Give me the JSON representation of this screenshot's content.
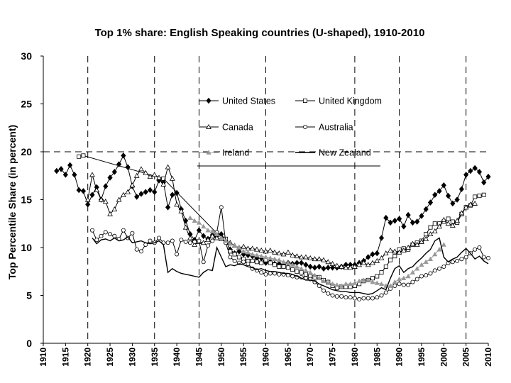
{
  "chart_data": {
    "type": "line",
    "title": "Top 1% share: English Speaking countries (U-shaped), 1910-2010",
    "xlabel": "",
    "ylabel": "Top Percentile Share (in percent)",
    "xlim": [
      1910,
      2010
    ],
    "ylim": [
      0,
      30
    ],
    "yticks": [
      0,
      5,
      10,
      15,
      20,
      25,
      30
    ],
    "xticks": [
      1910,
      1915,
      1920,
      1925,
      1930,
      1935,
      1940,
      1945,
      1950,
      1955,
      1960,
      1965,
      1970,
      1975,
      1980,
      1985,
      1990,
      1995,
      2000,
      2005,
      2010
    ],
    "reference_lines": {
      "horizontal": [
        20
      ],
      "vertical": [
        1920,
        1935,
        1945,
        1960,
        1980,
        1990,
        2005
      ]
    },
    "series": [
      {
        "name": "United States",
        "marker": "diamond-filled",
        "color": "#000000",
        "x": [
          1913,
          1914,
          1915,
          1916,
          1917,
          1918,
          1919,
          1920,
          1921,
          1922,
          1923,
          1924,
          1925,
          1926,
          1927,
          1928,
          1929,
          1930,
          1931,
          1932,
          1933,
          1934,
          1935,
          1936,
          1937,
          1938,
          1939,
          1940,
          1941,
          1942,
          1943,
          1944,
          1945,
          1946,
          1947,
          1948,
          1949,
          1950,
          1951,
          1952,
          1953,
          1954,
          1955,
          1956,
          1957,
          1958,
          1959,
          1960,
          1961,
          1962,
          1963,
          1964,
          1965,
          1966,
          1967,
          1968,
          1969,
          1970,
          1971,
          1972,
          1973,
          1974,
          1975,
          1976,
          1977,
          1978,
          1979,
          1980,
          1981,
          1982,
          1983,
          1984,
          1985,
          1986,
          1987,
          1988,
          1989,
          1990,
          1991,
          1992,
          1993,
          1994,
          1995,
          1996,
          1997,
          1998,
          1999,
          2000,
          2001,
          2002,
          2003,
          2004,
          2005,
          2006,
          2007,
          2008,
          2009,
          2010
        ],
        "y": [
          18.0,
          18.2,
          17.6,
          18.6,
          17.6,
          16.0,
          15.9,
          14.5,
          15.5,
          16.3,
          15.0,
          16.4,
          17.3,
          17.9,
          18.7,
          19.6,
          18.4,
          16.4,
          15.3,
          15.6,
          15.8,
          16.0,
          15.8,
          17.0,
          16.8,
          14.2,
          15.5,
          15.7,
          14.0,
          12.8,
          11.4,
          10.8,
          11.8,
          11.2,
          10.9,
          11.3,
          11.2,
          11.4,
          10.7,
          9.8,
          9.4,
          9.6,
          9.3,
          9.2,
          9.1,
          8.9,
          8.9,
          8.4,
          8.5,
          8.3,
          8.3,
          8.2,
          8.4,
          8.3,
          8.4,
          8.4,
          8.2,
          8.0,
          7.9,
          8.0,
          7.8,
          7.9,
          7.9,
          7.9,
          8.0,
          8.2,
          8.2,
          8.2,
          8.4,
          8.6,
          9.0,
          9.3,
          9.4,
          11.0,
          13.1,
          12.6,
          12.8,
          13.0,
          12.2,
          13.4,
          12.6,
          12.7,
          13.3,
          14.0,
          14.7,
          15.5,
          15.9,
          16.5,
          15.4,
          14.6,
          15.0,
          16.1,
          17.6,
          18.0,
          18.3,
          17.9,
          16.8,
          17.4
        ]
      },
      {
        "name": "United Kingdom",
        "marker": "square-open",
        "color": "#000000",
        "x": [
          1918,
          1919,
          1937,
          1949,
          1951,
          1952,
          1953,
          1954,
          1955,
          1956,
          1957,
          1958,
          1959,
          1960,
          1961,
          1962,
          1963,
          1964,
          1965,
          1966,
          1967,
          1968,
          1969,
          1970,
          1971,
          1972,
          1973,
          1974,
          1975,
          1976,
          1977,
          1978,
          1979,
          1980,
          1981,
          1982,
          1983,
          1984,
          1985,
          1986,
          1987,
          1988,
          1989,
          1990,
          1991,
          1992,
          1993,
          1994,
          1995,
          1996,
          1997,
          1998,
          1999,
          2000,
          2001,
          2002,
          2003,
          2004,
          2005,
          2006,
          2007,
          2008,
          2009
        ],
        "y": [
          19.5,
          19.6,
          17.2,
          11.5,
          10.9,
          9.6,
          9.3,
          9.0,
          8.8,
          8.6,
          8.6,
          8.5,
          8.4,
          8.7,
          8.4,
          8.2,
          8.0,
          8.0,
          7.9,
          7.7,
          7.5,
          7.4,
          7.2,
          7.0,
          6.9,
          6.9,
          6.6,
          6.4,
          6.0,
          5.8,
          5.9,
          5.9,
          5.9,
          6.0,
          6.2,
          6.5,
          6.6,
          6.8,
          7.0,
          7.4,
          8.0,
          8.7,
          9.1,
          9.8,
          9.9,
          9.8,
          10.3,
          10.5,
          10.7,
          11.4,
          12.1,
          12.5,
          12.5,
          12.7,
          13.0,
          12.7,
          12.6,
          13.5,
          14.2,
          14.4,
          15.3,
          15.4,
          15.5
        ]
      },
      {
        "name": "Canada",
        "marker": "triangle-open",
        "color": "#000000",
        "x": [
          1920,
          1921,
          1922,
          1923,
          1924,
          1925,
          1926,
          1927,
          1928,
          1929,
          1930,
          1931,
          1932,
          1933,
          1934,
          1935,
          1936,
          1937,
          1938,
          1939,
          1940,
          1941,
          1942,
          1943,
          1944,
          1945,
          1946,
          1947,
          1948,
          1949,
          1950,
          1951,
          1952,
          1953,
          1954,
          1955,
          1956,
          1957,
          1958,
          1959,
          1960,
          1961,
          1962,
          1963,
          1964,
          1965,
          1966,
          1967,
          1968,
          1969,
          1970,
          1971,
          1972,
          1973,
          1974,
          1975,
          1976,
          1977,
          1978,
          1979,
          1980,
          1981,
          1982,
          1983,
          1984,
          1985,
          1986,
          1987,
          1988,
          1989,
          1990,
          1991,
          1992,
          1993,
          1994,
          1995,
          1996,
          1997,
          1998,
          1999,
          2000,
          2001,
          2002,
          2003,
          2004,
          2005,
          2006,
          2007
        ],
        "y": [
          15.0,
          17.6,
          16.0,
          15.0,
          14.8,
          13.5,
          14.0,
          15.0,
          15.5,
          15.8,
          16.5,
          17.5,
          18.2,
          17.8,
          17.4,
          17.6,
          17.3,
          16.6,
          18.4,
          17.2,
          14.5,
          13.8,
          12.1,
          11.0,
          10.3,
          10.6,
          10.5,
          10.8,
          11.2,
          11.0,
          10.9,
          10.7,
          10.5,
          10.2,
          10.0,
          10.1,
          9.9,
          9.9,
          9.8,
          9.7,
          9.6,
          9.7,
          9.5,
          9.4,
          9.3,
          9.5,
          9.2,
          9.1,
          9.0,
          9.0,
          8.9,
          8.8,
          8.8,
          8.7,
          8.5,
          8.3,
          8.1,
          8.0,
          7.9,
          7.9,
          8.0,
          8.2,
          8.4,
          8.2,
          8.4,
          8.6,
          8.9,
          9.4,
          9.7,
          9.6,
          9.5,
          9.7,
          10.0,
          10.4,
          10.3,
          10.6,
          10.9,
          11.4,
          11.7,
          12.2,
          12.9,
          12.5,
          12.3,
          12.8,
          13.6,
          14.2,
          14.5,
          14.6
        ]
      },
      {
        "name": "Australia",
        "marker": "circle-open",
        "color": "#000000",
        "x": [
          1921,
          1922,
          1923,
          1924,
          1925,
          1926,
          1927,
          1928,
          1929,
          1930,
          1931,
          1932,
          1933,
          1934,
          1935,
          1936,
          1937,
          1938,
          1939,
          1940,
          1941,
          1942,
          1943,
          1944,
          1945,
          1946,
          1947,
          1948,
          1949,
          1950,
          1951,
          1952,
          1953,
          1954,
          1955,
          1956,
          1957,
          1958,
          1959,
          1960,
          1961,
          1962,
          1963,
          1964,
          1965,
          1966,
          1967,
          1968,
          1969,
          1970,
          1971,
          1972,
          1973,
          1974,
          1975,
          1976,
          1977,
          1978,
          1979,
          1980,
          1981,
          1982,
          1983,
          1984,
          1985,
          1986,
          1987,
          1988,
          1989,
          1990,
          1991,
          1992,
          1993,
          1994,
          1995,
          1996,
          1997,
          1998,
          1999,
          2000,
          2001,
          2002,
          2003,
          2004,
          2005,
          2006,
          2007,
          2008,
          2009,
          2010
        ],
        "y": [
          11.8,
          10.8,
          11.2,
          11.6,
          11.4,
          11.2,
          10.9,
          11.8,
          11.0,
          11.5,
          9.8,
          9.6,
          10.3,
          10.7,
          10.5,
          11.0,
          10.5,
          10.5,
          10.7,
          9.3,
          10.8,
          10.6,
          10.5,
          10.6,
          10.7,
          8.5,
          10.2,
          10.7,
          11.6,
          14.2,
          10.5,
          9.0,
          8.6,
          8.4,
          8.5,
          8.3,
          7.8,
          7.6,
          7.4,
          7.2,
          7.3,
          7.3,
          7.2,
          7.2,
          7.1,
          7.0,
          6.9,
          6.9,
          6.8,
          6.7,
          6.4,
          6.0,
          5.5,
          5.2,
          5.0,
          4.9,
          4.9,
          4.8,
          4.8,
          4.7,
          4.6,
          4.7,
          4.7,
          4.7,
          4.8,
          5.0,
          5.3,
          5.7,
          6.0,
          6.2,
          6.1,
          6.1,
          6.4,
          6.7,
          7.0,
          7.1,
          7.3,
          7.6,
          7.8,
          8.0,
          8.4,
          8.5,
          8.6,
          8.8,
          9.0,
          9.4,
          9.8,
          10.0,
          9.0,
          8.9
        ]
      },
      {
        "name": "Ireland",
        "marker": "triangle-filled",
        "color": "#999999",
        "x": [
          1943,
          1944,
          1945,
          1946,
          1947,
          1948,
          1949,
          1950,
          1951,
          1952,
          1953,
          1954,
          1955,
          1956,
          1957,
          1958,
          1959,
          1960,
          1961,
          1962,
          1963,
          1964,
          1965,
          1966,
          1967,
          1968,
          1969,
          1970,
          1971,
          1972,
          1973,
          1974,
          1975,
          1976,
          1977,
          1978,
          1979,
          1980,
          1981,
          1982,
          1983,
          1984,
          1985,
          1986,
          1987,
          1988,
          1989,
          1990,
          1991,
          1992,
          1993,
          1994,
          1995,
          1996,
          1997,
          1998,
          1999,
          2000
        ],
        "y": [
          13.1,
          12.8,
          12.6,
          12.2,
          11.8,
          11.7,
          11.4,
          11.0,
          10.7,
          10.4,
          10.2,
          10.0,
          9.6,
          9.5,
          9.3,
          9.2,
          9.1,
          9.0,
          8.9,
          8.8,
          8.7,
          8.5,
          8.4,
          8.2,
          8.0,
          7.8,
          7.6,
          7.4,
          7.1,
          6.8,
          6.5,
          6.3,
          6.2,
          6.1,
          6.0,
          6.2,
          6.2,
          6.3,
          6.5,
          6.6,
          6.6,
          6.4,
          6.3,
          6.2,
          6.0,
          6.0,
          6.4,
          6.7,
          6.8,
          7.0,
          7.4,
          7.8,
          8.2,
          8.5,
          8.8,
          9.3,
          9.8,
          10.3
        ]
      },
      {
        "name": "New Zealand",
        "marker": "none",
        "color": "#000000",
        "x": [
          1921,
          1922,
          1923,
          1924,
          1925,
          1926,
          1927,
          1928,
          1929,
          1930,
          1931,
          1932,
          1933,
          1934,
          1935,
          1936,
          1937,
          1938,
          1939,
          1940,
          1941,
          1942,
          1943,
          1944,
          1945,
          1946,
          1947,
          1948,
          1949,
          1950,
          1951,
          1952,
          1953,
          1954,
          1955,
          1956,
          1957,
          1958,
          1959,
          1960,
          1961,
          1962,
          1963,
          1964,
          1965,
          1966,
          1967,
          1968,
          1969,
          1970,
          1971,
          1972,
          1973,
          1974,
          1975,
          1976,
          1977,
          1978,
          1979,
          1980,
          1981,
          1982,
          1983,
          1984,
          1985,
          1986,
          1987,
          1988,
          1989,
          1990,
          1991,
          1992,
          1993,
          1994,
          1995,
          1996,
          1997,
          1998,
          1999,
          2000,
          2001,
          2002,
          2003,
          2004,
          2005,
          2006,
          2007,
          2008,
          2009,
          2010
        ],
        "y": [
          11.0,
          10.4,
          10.8,
          10.9,
          10.7,
          11.0,
          10.7,
          10.8,
          11.1,
          10.5,
          10.6,
          10.7,
          10.5,
          10.4,
          10.5,
          10.7,
          10.3,
          7.4,
          7.8,
          7.5,
          7.3,
          7.2,
          7.1,
          7.0,
          6.9,
          7.4,
          7.7,
          7.6,
          10.0,
          9.0,
          8.0,
          8.2,
          8.1,
          8.3,
          8.2,
          8.0,
          7.9,
          7.7,
          7.8,
          7.6,
          7.5,
          7.5,
          7.4,
          7.3,
          7.3,
          7.2,
          7.0,
          6.8,
          6.6,
          6.6,
          6.5,
          6.2,
          6.0,
          5.8,
          5.6,
          5.5,
          5.4,
          5.4,
          5.3,
          5.3,
          5.3,
          5.2,
          5.1,
          5.2,
          5.5,
          5.8,
          5.6,
          6.8,
          7.8,
          8.1,
          7.4,
          7.8,
          8.0,
          8.5,
          8.9,
          9.4,
          9.8,
          10.7,
          11.0,
          9.0,
          8.5,
          8.8,
          9.0,
          9.5,
          9.9,
          9.4,
          8.8,
          9.1,
          8.6,
          8.3
        ]
      }
    ],
    "legend": {
      "placement": "upper-right inside plot, 2 columns"
    }
  }
}
